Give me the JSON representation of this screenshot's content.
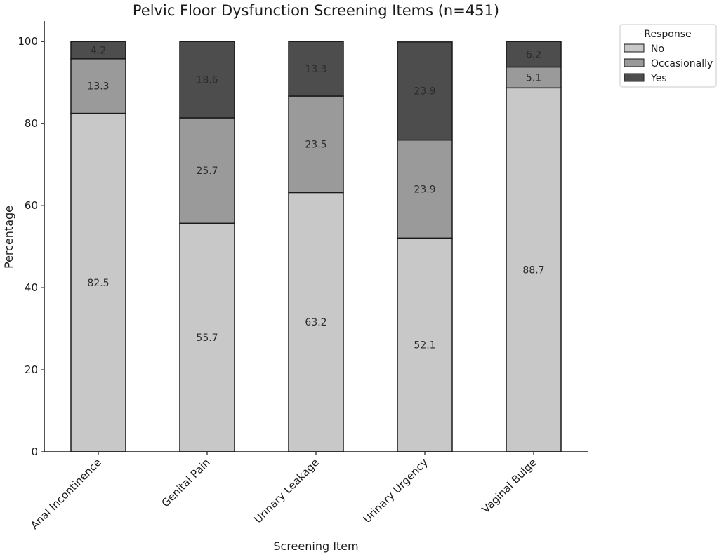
{
  "chart_data": {
    "type": "bar",
    "stacked": true,
    "title": "Pelvic Floor Dysfunction Screening Items (n=451)",
    "xlabel": "Screening Item",
    "ylabel": "Percentage",
    "ylim": [
      0,
      105
    ],
    "yticks": [
      0,
      20,
      40,
      60,
      80,
      100
    ],
    "categories": [
      "Anal Incontinence",
      "Genital Pain",
      "Urinary Leakage",
      "Urinary Urgency",
      "Vaginal Bulge"
    ],
    "series": [
      {
        "name": "No",
        "color": "#c8c8c8",
        "values": [
          82.5,
          55.7,
          63.2,
          52.1,
          88.7
        ]
      },
      {
        "name": "Occasionally",
        "color": "#9a9a9a",
        "values": [
          13.3,
          25.7,
          23.5,
          23.9,
          5.1
        ]
      },
      {
        "name": "Yes",
        "color": "#4d4d4d",
        "values": [
          4.2,
          18.6,
          13.3,
          23.9,
          6.2
        ]
      }
    ],
    "legend": {
      "title": "Response",
      "position": "outside-top-right"
    },
    "grid": false
  }
}
